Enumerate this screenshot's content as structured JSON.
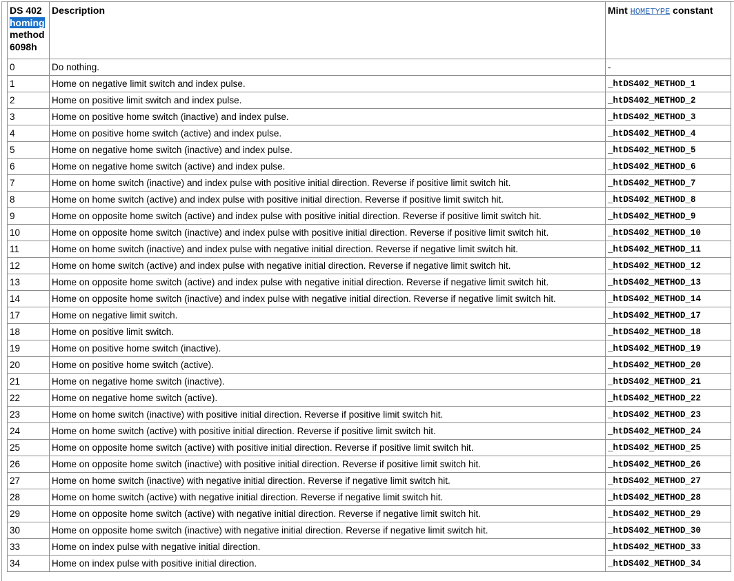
{
  "header": {
    "col1_line1": "DS 402",
    "col1_highlight": "homing",
    "col1_line3": "method",
    "col1_line4": "6098h",
    "col2": "Description",
    "col3_prefix": "Mint",
    "col3_link": "HOMETYPE",
    "col3_suffix": "constant"
  },
  "rows": [
    [
      "0",
      "Do nothing.",
      "-"
    ],
    [
      "1",
      "Home on negative limit switch and index pulse.",
      "_htDS402_METHOD_1"
    ],
    [
      "2",
      "Home on positive limit switch and index pulse.",
      "_htDS402_METHOD_2"
    ],
    [
      "3",
      "Home on positive home switch (inactive) and index pulse.",
      "_htDS402_METHOD_3"
    ],
    [
      "4",
      "Home on positive home switch (active) and index pulse.",
      "_htDS402_METHOD_4"
    ],
    [
      "5",
      "Home on negative home switch (inactive) and index pulse.",
      "_htDS402_METHOD_5"
    ],
    [
      "6",
      "Home on negative home switch (active) and index pulse.",
      "_htDS402_METHOD_6"
    ],
    [
      "7",
      "Home on home switch (inactive) and index pulse with positive initial direction. Reverse if positive limit switch hit.",
      "_htDS402_METHOD_7"
    ],
    [
      "8",
      "Home on home switch (active) and index pulse with positive initial direction. Reverse if positive limit switch hit.",
      "_htDS402_METHOD_8"
    ],
    [
      "9",
      "Home on opposite home switch (active) and index pulse with positive initial direction. Reverse if positive limit switch hit.",
      "_htDS402_METHOD_9"
    ],
    [
      "10",
      "Home on opposite home switch (inactive) and index pulse with positive initial direction. Reverse if positive limit switch hit.",
      "_htDS402_METHOD_10"
    ],
    [
      "11",
      "Home on home switch (inactive) and index pulse with negative initial direction. Reverse if negative limit switch hit.",
      "_htDS402_METHOD_11"
    ],
    [
      "12",
      "Home on home switch (active) and index pulse with negative initial direction. Reverse if negative limit switch hit.",
      "_htDS402_METHOD_12"
    ],
    [
      "13",
      "Home on opposite home switch (active) and index pulse with negative initial direction. Reverse if negative limit switch hit.",
      "_htDS402_METHOD_13"
    ],
    [
      "14",
      "Home on opposite home switch (inactive) and index pulse with negative initial direction. Reverse if negative limit switch hit.",
      "_htDS402_METHOD_14"
    ],
    [
      "17",
      "Home on negative limit switch.",
      "_htDS402_METHOD_17"
    ],
    [
      "18",
      "Home on positive limit switch.",
      "_htDS402_METHOD_18"
    ],
    [
      "19",
      "Home on positive home switch (inactive).",
      "_htDS402_METHOD_19"
    ],
    [
      "20",
      "Home on positive home switch (active).",
      "_htDS402_METHOD_20"
    ],
    [
      "21",
      "Home on negative home switch (inactive).",
      "_htDS402_METHOD_21"
    ],
    [
      "22",
      "Home on negative home switch (active).",
      "_htDS402_METHOD_22"
    ],
    [
      "23",
      "Home on home switch (inactive) with positive initial direction. Reverse if positive limit switch hit.",
      "_htDS402_METHOD_23"
    ],
    [
      "24",
      "Home on home switch (active) with positive initial direction. Reverse if positive limit switch hit.",
      "_htDS402_METHOD_24"
    ],
    [
      "25",
      "Home on opposite home switch (active) with positive initial direction. Reverse if positive limit switch hit.",
      "_htDS402_METHOD_25"
    ],
    [
      "26",
      "Home on opposite home switch (inactive) with positive initial direction. Reverse if positive limit switch hit.",
      "_htDS402_METHOD_26"
    ],
    [
      "27",
      "Home on home switch (inactive) with negative initial direction. Reverse if negative limit switch hit.",
      "_htDS402_METHOD_27"
    ],
    [
      "28",
      "Home on home switch (active) with negative initial direction. Reverse if negative limit switch hit.",
      "_htDS402_METHOD_28"
    ],
    [
      "29",
      "Home on opposite home switch (active) with negative initial direction. Reverse if negative limit switch hit.",
      "_htDS402_METHOD_29"
    ],
    [
      "30",
      "Home on opposite home switch (inactive) with negative initial direction. Reverse if negative limit switch hit.",
      "_htDS402_METHOD_30"
    ],
    [
      "33",
      "Home on index pulse with negative initial direction.",
      "_htDS402_METHOD_33"
    ],
    [
      "34",
      "Home on index pulse with positive initial direction.",
      "_htDS402_METHOD_34"
    ]
  ],
  "colors": {
    "highlight": "#1a6fc9",
    "link": "#2b64b0",
    "border": "#8c8c8c"
  }
}
